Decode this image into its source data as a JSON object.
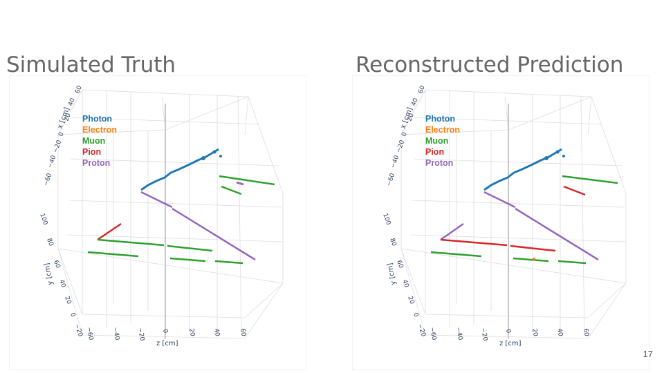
{
  "slide": {
    "page_number": "17"
  },
  "panels": [
    {
      "title": "Simulated Truth",
      "x_axis_label": "x [cm]",
      "y_axis_label": "y [cm]",
      "z_axis_label": "z [cm]",
      "x_ticks": [
        "60",
        "40",
        "20",
        "0",
        "−20",
        "−40",
        "−60"
      ],
      "y_ticks": [
        "100",
        "80",
        "60",
        "40",
        "20",
        "0",
        "−20"
      ],
      "z_ticks": [
        "−60",
        "−40",
        "−20",
        "0",
        "20",
        "40",
        "60"
      ],
      "legend": [
        {
          "label": "Photon",
          "color": "#1f77b4"
        },
        {
          "label": "Electron",
          "color": "#ff7f0e"
        },
        {
          "label": "Muon",
          "color": "#2ca02c"
        },
        {
          "label": "Pion",
          "color": "#d62728"
        },
        {
          "label": "Proton",
          "color": "#9467bd"
        }
      ]
    },
    {
      "title": "Reconstructed Prediction",
      "x_axis_label": "x [cm]",
      "y_axis_label": "y [cm]",
      "z_axis_label": "z [cm]",
      "x_ticks": [
        "60",
        "40",
        "20",
        "0",
        "−20",
        "−40",
        "−60"
      ],
      "y_ticks": [
        "100",
        "80",
        "60",
        "40",
        "20",
        "0",
        "−20"
      ],
      "z_ticks": [
        "−60",
        "−40",
        "−20",
        "0",
        "20",
        "40",
        "60"
      ],
      "legend": [
        {
          "label": "Photon",
          "color": "#1f77b4"
        },
        {
          "label": "Electron",
          "color": "#ff7f0e"
        },
        {
          "label": "Muon",
          "color": "#2ca02c"
        },
        {
          "label": "Pion",
          "color": "#d62728"
        },
        {
          "label": "Proton",
          "color": "#9467bd"
        }
      ]
    }
  ]
}
